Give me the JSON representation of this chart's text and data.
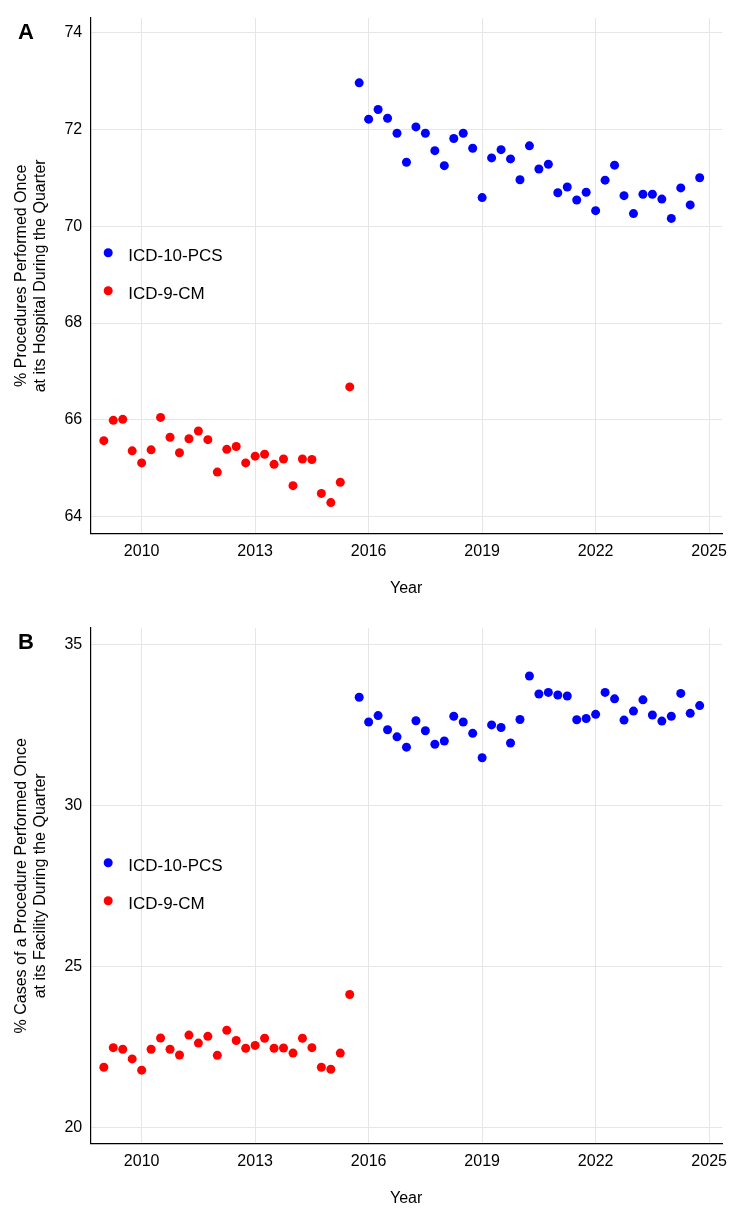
{
  "chart_data": [
    {
      "type": "scatter",
      "xlabel": "Year",
      "ylabel": "% Procedures Performed Once\nat its Hospital During the Quarter",
      "annotations": [
        "A"
      ],
      "xlim": [
        2008.64,
        2025.34
      ],
      "xticks": [
        2010,
        2013,
        2016,
        2019,
        2022,
        2025
      ],
      "ylim": [
        63.65,
        74.3
      ],
      "yticks": [
        64,
        66,
        68,
        70,
        72,
        74
      ],
      "grid": true,
      "legend": "left",
      "marker": "circle",
      "series": [
        {
          "name": "ICD-10-PCS",
          "color": "#0000ff",
          "x": [
            2015.75,
            2016,
            2016.25,
            2016.5,
            2016.75,
            2017,
            2017.25,
            2017.5,
            2017.75,
            2018,
            2018.25,
            2018.5,
            2018.75,
            2019,
            2019.25,
            2019.5,
            2019.75,
            2020,
            2020.25,
            2020.5,
            2020.75,
            2021,
            2021.25,
            2021.5,
            2021.75,
            2022,
            2022.25,
            2022.5,
            2022.75,
            2023,
            2023.25,
            2023.5,
            2023.75,
            2024,
            2024.25,
            2024.5,
            2024.75
          ],
          "values": [
            72.96,
            72.21,
            72.41,
            72.23,
            71.92,
            71.32,
            72.05,
            71.92,
            71.56,
            71.25,
            71.81,
            71.92,
            71.61,
            70.59,
            71.41,
            71.58,
            71.39,
            70.96,
            71.66,
            71.18,
            71.28,
            70.69,
            70.81,
            70.54,
            70.7,
            70.32,
            70.95,
            71.26,
            70.63,
            70.26,
            70.66,
            70.66,
            70.56,
            70.16,
            70.79,
            70.44,
            71.0
          ]
        },
        {
          "name": "ICD-9-CM",
          "color": "#ff0000",
          "x": [
            2009,
            2009.25,
            2009.5,
            2009.75,
            2010,
            2010.25,
            2010.5,
            2010.75,
            2011,
            2011.25,
            2011.5,
            2011.75,
            2012,
            2012.25,
            2012.5,
            2012.75,
            2013,
            2013.25,
            2013.5,
            2013.75,
            2014,
            2014.25,
            2014.5,
            2014.75,
            2015,
            2015.25,
            2015.5
          ],
          "values": [
            65.57,
            65.99,
            66.01,
            65.36,
            65.11,
            65.38,
            66.05,
            65.64,
            65.32,
            65.61,
            65.77,
            65.59,
            64.92,
            65.39,
            65.45,
            65.11,
            65.25,
            65.29,
            65.08,
            65.19,
            64.64,
            65.19,
            65.18,
            64.48,
            64.29,
            64.71,
            66.68
          ]
        }
      ]
    },
    {
      "type": "scatter",
      "xlabel": "Year",
      "ylabel": "% Cases of a Procedure Performed Once\nat its Facility During the Quarter",
      "annotations": [
        "B"
      ],
      "xlim": [
        2008.64,
        2025.34
      ],
      "xticks": [
        2010,
        2013,
        2016,
        2019,
        2022,
        2025
      ],
      "ylim": [
        19.49,
        35.5
      ],
      "yticks": [
        20,
        25,
        30,
        35
      ],
      "grid": true,
      "legend": "left",
      "marker": "circle",
      "series": [
        {
          "name": "ICD-10-PCS",
          "color": "#0000ff",
          "x": [
            2015.75,
            2016,
            2016.25,
            2016.5,
            2016.75,
            2017,
            2017.25,
            2017.5,
            2017.75,
            2018,
            2018.25,
            2018.5,
            2018.75,
            2019,
            2019.25,
            2019.5,
            2019.75,
            2020,
            2020.25,
            2020.5,
            2020.75,
            2021,
            2021.25,
            2021.5,
            2021.75,
            2022,
            2022.25,
            2022.5,
            2022.75,
            2023,
            2023.25,
            2023.5,
            2023.75,
            2024,
            2024.25,
            2024.5,
            2024.75
          ],
          "values": [
            33.35,
            32.58,
            32.78,
            32.34,
            32.12,
            31.8,
            32.62,
            32.31,
            31.89,
            31.99,
            32.76,
            32.58,
            32.23,
            31.47,
            32.49,
            32.41,
            31.93,
            32.66,
            34.01,
            33.45,
            33.5,
            33.42,
            33.39,
            32.65,
            32.69,
            32.82,
            33.5,
            33.3,
            32.64,
            32.92,
            33.27,
            32.8,
            32.61,
            32.76,
            33.47,
            32.85,
            33.09
          ]
        },
        {
          "name": "ICD-9-CM",
          "color": "#ff0000",
          "x": [
            2009,
            2009.25,
            2009.5,
            2009.75,
            2010,
            2010.25,
            2010.5,
            2010.75,
            2011,
            2011.25,
            2011.5,
            2011.75,
            2012,
            2012.25,
            2012.5,
            2012.75,
            2013,
            2013.25,
            2013.5,
            2013.75,
            2014,
            2014.25,
            2014.5,
            2014.75,
            2015,
            2015.25,
            2015.5
          ],
          "values": [
            21.86,
            22.47,
            22.42,
            22.12,
            21.77,
            22.42,
            22.77,
            22.42,
            22.24,
            22.86,
            22.61,
            22.82,
            22.23,
            23.01,
            22.69,
            22.45,
            22.54,
            22.76,
            22.45,
            22.46,
            22.3,
            22.76,
            22.47,
            21.86,
            21.8,
            22.3,
            24.12
          ]
        }
      ]
    }
  ]
}
